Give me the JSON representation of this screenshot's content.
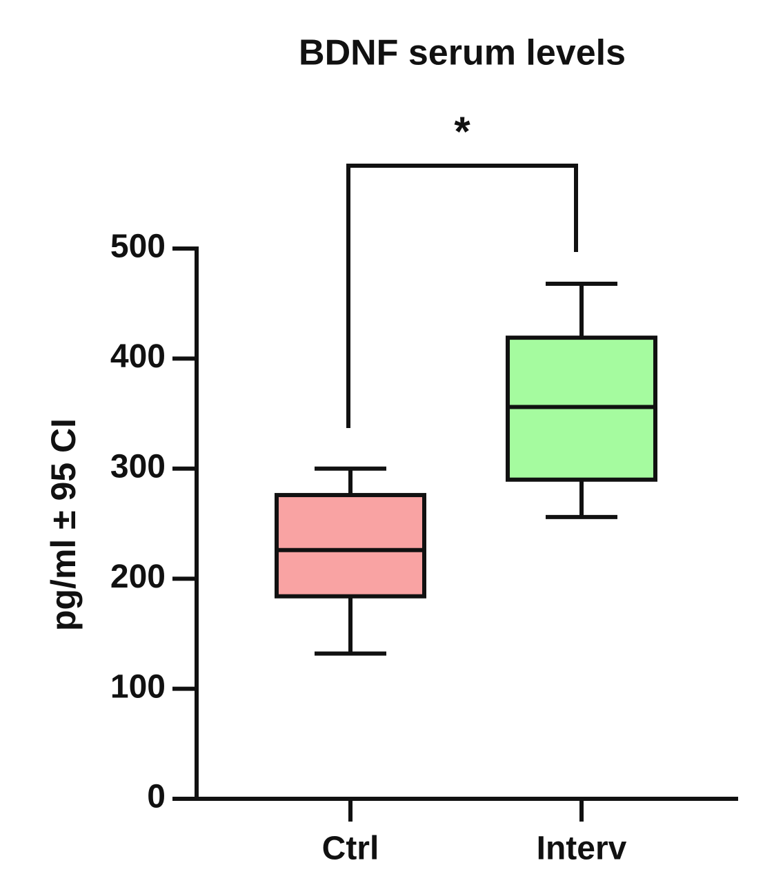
{
  "chart_data": {
    "type": "box",
    "title": "BDNF serum levels",
    "y_label": "pg/ml  ±  95 CI",
    "categories": [
      "Ctrl",
      "Interv"
    ],
    "colors": [
      "#f9a3a3",
      "#a5fb9f"
    ],
    "low": [
      132,
      256
    ],
    "q1": [
      184,
      290
    ],
    "median": [
      226,
      356
    ],
    "q3": [
      276,
      419
    ],
    "high": [
      300,
      468
    ],
    "annotation": "*",
    "ylim": [
      0,
      500
    ],
    "yticks": [
      0,
      100,
      200,
      300,
      400,
      500
    ]
  }
}
